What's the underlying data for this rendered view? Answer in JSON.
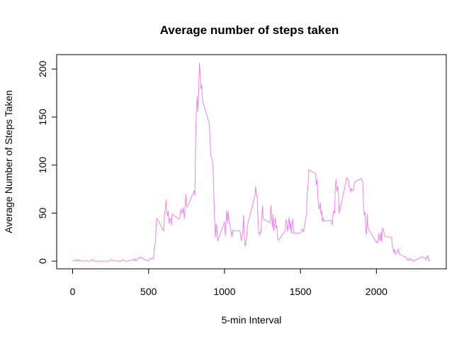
{
  "chart_data": {
    "type": "line",
    "title": "Average number of steps taken",
    "xlabel": "5-min Interval",
    "ylabel": "Average Number of Steps Taken",
    "xlim": [
      -105,
      2460
    ],
    "ylim": [
      -8,
      215
    ],
    "xticks": [
      0,
      500,
      1000,
      1500,
      2000
    ],
    "yticks": [
      0,
      50,
      100,
      150,
      200
    ],
    "grid": false,
    "legend": "none",
    "line_color": "#EE82EE",
    "series": [
      {
        "x": [
          0,
          5,
          10,
          15,
          20,
          25,
          30,
          35,
          40,
          45,
          50,
          55,
          100,
          105,
          110,
          115,
          120,
          125,
          130,
          135,
          140,
          145,
          150,
          155,
          200,
          205,
          210,
          215,
          220,
          225,
          230,
          235,
          240,
          245,
          250,
          255,
          300,
          305,
          310,
          315,
          320,
          325,
          330,
          335,
          340,
          345,
          350,
          355,
          400,
          405,
          410,
          415,
          420,
          425,
          430,
          435,
          440,
          445,
          450,
          455,
          500,
          505,
          510,
          515,
          520,
          525,
          530,
          535,
          540,
          545,
          550,
          555,
          600,
          605,
          610,
          615,
          620,
          625,
          630,
          635,
          640,
          645,
          650,
          655,
          700,
          705,
          710,
          715,
          720,
          725,
          730,
          735,
          740,
          745,
          750,
          755,
          800,
          805,
          810,
          815,
          820,
          825,
          830,
          835,
          840,
          845,
          850,
          855,
          900,
          905,
          910,
          915,
          920,
          925,
          930,
          935,
          940,
          945,
          950,
          955,
          1000,
          1005,
          1010,
          1015,
          1020,
          1025,
          1030,
          1035,
          1040,
          1045,
          1050,
          1055,
          1100,
          1105,
          1110,
          1115,
          1120,
          1125,
          1130,
          1135,
          1140,
          1145,
          1150,
          1155,
          1200,
          1205,
          1210,
          1215,
          1220,
          1225,
          1230,
          1235,
          1240,
          1245,
          1250,
          1255,
          1300,
          1305,
          1310,
          1315,
          1320,
          1325,
          1330,
          1335,
          1340,
          1345,
          1350,
          1355,
          1400,
          1405,
          1410,
          1415,
          1420,
          1425,
          1430,
          1435,
          1440,
          1445,
          1450,
          1455,
          1500,
          1505,
          1510,
          1515,
          1520,
          1525,
          1530,
          1535,
          1540,
          1545,
          1550,
          1555,
          1600,
          1605,
          1610,
          1615,
          1620,
          1625,
          1630,
          1635,
          1640,
          1645,
          1650,
          1655,
          1700,
          1705,
          1710,
          1715,
          1720,
          1725,
          1730,
          1735,
          1740,
          1745,
          1750,
          1755,
          1800,
          1805,
          1810,
          1815,
          1820,
          1825,
          1830,
          1835,
          1840,
          1845,
          1850,
          1855,
          1900,
          1905,
          1910,
          1915,
          1920,
          1925,
          1930,
          1935,
          1940,
          1945,
          1950,
          1955,
          2000,
          2005,
          2010,
          2015,
          2020,
          2025,
          2030,
          2035,
          2040,
          2045,
          2050,
          2055,
          2100,
          2105,
          2110,
          2115,
          2120,
          2125,
          2130,
          2135,
          2140,
          2145,
          2150,
          2155,
          2200,
          2205,
          2210,
          2215,
          2220,
          2225,
          2230,
          2235,
          2240,
          2245,
          2250,
          2255,
          2300,
          2305,
          2310,
          2315,
          2320,
          2325,
          2330,
          2335,
          2340,
          2345,
          2350,
          2355
        ],
        "y": [
          1.7,
          0.3,
          0.1,
          0.2,
          0.1,
          2.1,
          0.5,
          0.9,
          0.0,
          1.5,
          0.3,
          0.1,
          0.4,
          0.0,
          0.0,
          0.0,
          0.0,
          1.1,
          1.8,
          0.2,
          0.2,
          0.5,
          0.2,
          0.0,
          0.0,
          0.0,
          0.0,
          0.0,
          0.0,
          0.0,
          0.0,
          0.0,
          0.0,
          0.0,
          1.5,
          0.9,
          0.0,
          0.0,
          0.0,
          0.0,
          0.2,
          0.6,
          1.6,
          0.6,
          0.5,
          0.1,
          0.0,
          0.0,
          1.2,
          0.9,
          2.6,
          0.0,
          0.3,
          1.1,
          3.4,
          2.9,
          3.0,
          3.5,
          4.5,
          3.1,
          0.0,
          1.8,
          3.0,
          2.2,
          3.1,
          3.0,
          2.1,
          6.1,
          16.0,
          18.3,
          39.5,
          44.5,
          31.5,
          49.3,
          53.8,
          63.5,
          50.0,
          47.1,
          52.2,
          39.3,
          44.0,
          44.2,
          37.4,
          49.0,
          43.8,
          44.4,
          50.5,
          54.5,
          49.9,
          51.0,
          55.7,
          44.3,
          52.3,
          69.5,
          57.8,
          56.2,
          73.4,
          68.2,
          129.4,
          157.5,
          171.2,
          155.4,
          177.3,
          206.2,
          196.0,
          179.6,
          183.4,
          167.0,
          143.5,
          124.0,
          109.1,
          108.1,
          103.7,
          95.9,
          66.2,
          45.2,
          24.8,
          38.8,
          34.98,
          21.1,
          40.6,
          26.5,
          42.4,
          52.7,
          38.9,
          50.8,
          44.3,
          37.4,
          34.7,
          28.3,
          25.1,
          31.9,
          31.4,
          29.7,
          21.3,
          25.5,
          28.4,
          47.8,
          30.0,
          16.0,
          17.2,
          23.3,
          35.4,
          39.9,
          67.8,
          77.7,
          68.0,
          68.9,
          45.4,
          32.1,
          26.9,
          30.1,
          29.8,
          45.7,
          57.1,
          44.1,
          39.9,
          57.8,
          45.9,
          35.5,
          48.6,
          31.6,
          38.7,
          45.2,
          34.3,
          37.1,
          23.0,
          21.7,
          31.6,
          43.2,
          41.7,
          30.8,
          38.5,
          45.6,
          33.3,
          40.9,
          28.6,
          39.9,
          43.8,
          29.0,
          29.5,
          30.2,
          33.7,
          32.9,
          30.4,
          34.1,
          38.9,
          44.5,
          49.1,
          71.4,
          78.8,
          95.2,
          91.0,
          79.5,
          85.1,
          65.6,
          55.6,
          54.1,
          61.1,
          48.9,
          52.4,
          41.2,
          45.0,
          41.5,
          42.6,
          39.8,
          37.9,
          49.7,
          52.4,
          49.8,
          79.1,
          85.1,
          72.5,
          78.1,
          70.3,
          49.8,
          82.5,
          87.1,
          85.0,
          85.1,
          77.3,
          76.5,
          71.8,
          75.8,
          73.6,
          73.5,
          74.2,
          82.2,
          85.9,
          84.7,
          82.2,
          58.8,
          47.9,
          50.9,
          33.8,
          27.8,
          48.8,
          34.5,
          32.0,
          31.8,
          19.3,
          20.5,
          19.1,
          28.8,
          25.1,
          21.0,
          30.9,
          20.3,
          34.5,
          32.8,
          29.9,
          25.9,
          24.6,
          15.5,
          12.8,
          8.5,
          12.5,
          7.2,
          7.5,
          9.1,
          9.8,
          13.3,
          7.3,
          7.1,
          3.2,
          0.8,
          0.7,
          2.2,
          3.0,
          1.2,
          1.1,
          1.9,
          0.2,
          0.0,
          0.2,
          1.1,
          4.3,
          4.8,
          3.8,
          3.4,
          3.5,
          1.4,
          3.1,
          5.8,
          4.6,
          0.3,
          0.3,
          1.8
        ]
      }
    ]
  }
}
